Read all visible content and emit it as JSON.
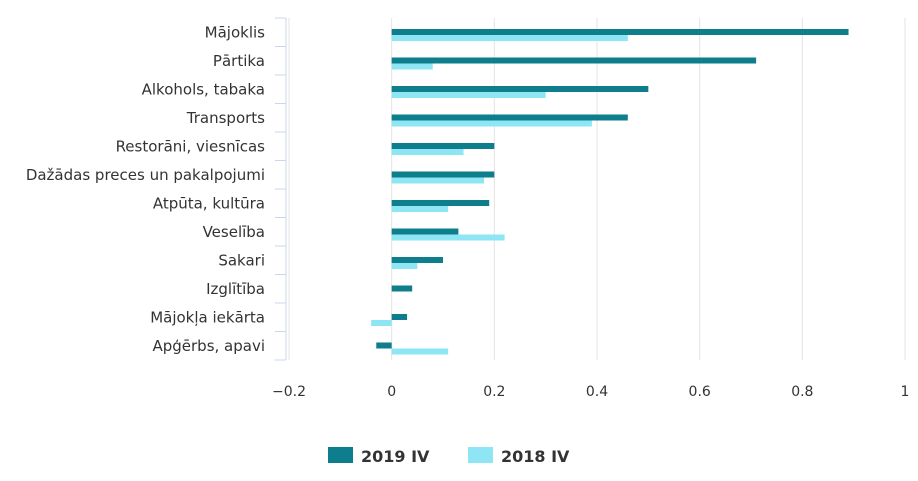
{
  "chart_data": {
    "type": "bar",
    "orientation": "horizontal",
    "categories": [
      "Mājoklis",
      "Pārtika",
      "Alkohols, tabaka",
      "Transports",
      "Restorāni, viesnīcas",
      "Dažādas preces un pakalpojumi",
      "Atpūta, kultūra",
      "Veselība",
      "Sakari",
      "Izglītība",
      "Mājokļa iekārta",
      "Apģērbs, apavi"
    ],
    "series": [
      {
        "name": "2019 IV",
        "color": "#0e7d8c",
        "values": [
          0.89,
          0.71,
          0.5,
          0.46,
          0.2,
          0.2,
          0.19,
          0.13,
          0.1,
          0.04,
          0.03,
          -0.03
        ]
      },
      {
        "name": "2018 IV",
        "color": "#8ee6f4",
        "values": [
          0.46,
          0.08,
          0.3,
          0.39,
          0.14,
          0.18,
          0.11,
          0.22,
          0.05,
          0,
          -0.04,
          0.11
        ]
      }
    ],
    "xlim": [
      -0.2,
      1
    ],
    "xticks": [
      "−0.2",
      "0",
      "0.2",
      "0.4",
      "0.6",
      "0.8",
      "1"
    ],
    "grid": true,
    "legend_position": "bottom"
  }
}
